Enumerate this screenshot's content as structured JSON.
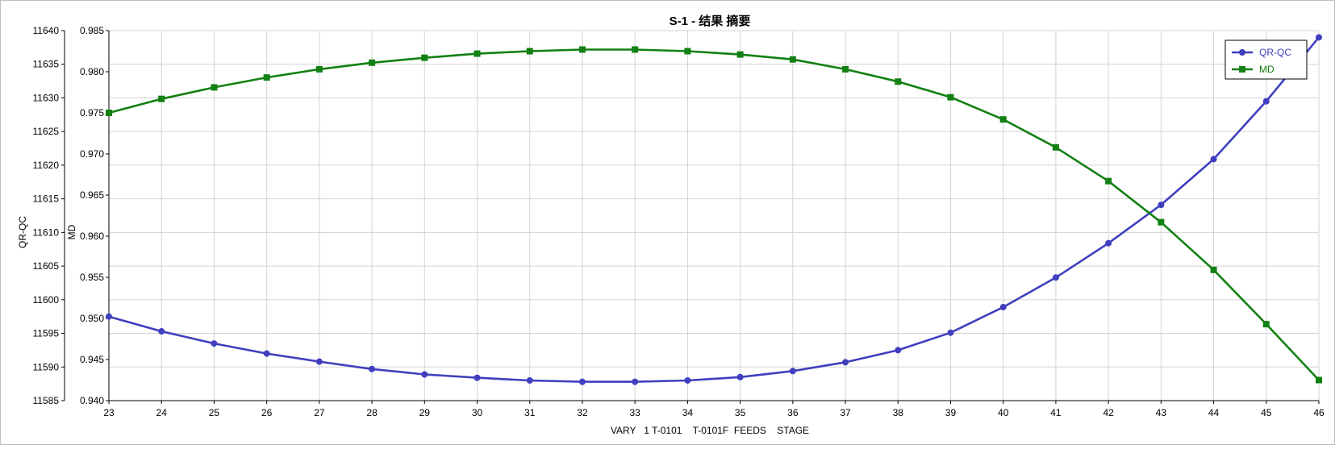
{
  "chart_data": {
    "type": "line",
    "title": "S-1 - 结果 摘要",
    "xlabel": "VARY   1 T-0101    T-0101F  FEEDS    STAGE",
    "ylabel_left": "QR-QC",
    "ylabel_right": "MD",
    "x": [
      23,
      24,
      25,
      26,
      27,
      28,
      29,
      30,
      31,
      32,
      33,
      34,
      35,
      36,
      37,
      38,
      39,
      40,
      41,
      42,
      43,
      44,
      45,
      46
    ],
    "xlim": [
      23,
      46
    ],
    "y_left_lim": [
      11585,
      11640
    ],
    "y_left_ticks": [
      "11585",
      "11590",
      "11595",
      "11600",
      "11605",
      "11610",
      "11615",
      "11620",
      "11625",
      "11630",
      "11635",
      "11640"
    ],
    "y_right_lim": [
      0.94,
      0.985
    ],
    "y_right_ticks": [
      "0.940",
      "0.945",
      "0.950",
      "0.955",
      "0.960",
      "0.965",
      "0.970",
      "0.975",
      "0.980",
      "0.985"
    ],
    "grid": true,
    "legend_position": "top-right",
    "series": [
      {
        "name": "QR-QC",
        "axis": "left",
        "color": "#3f3fbf",
        "marker": "circle",
        "values": [
          11597.5,
          11595.3,
          11593.5,
          11592.0,
          11590.8,
          11589.7,
          11588.9,
          11588.4,
          11588.0,
          11587.8,
          11587.8,
          11588.0,
          11588.5,
          11589.4,
          11590.7,
          11592.5,
          11595.1,
          11598.9,
          11603.3,
          11608.4,
          11614.1,
          11620.9,
          11629.5,
          11639.0
        ]
      },
      {
        "name": "MD",
        "axis": "right",
        "color": "#128012",
        "marker": "square",
        "values": [
          0.975,
          0.9767,
          0.9781,
          0.9793,
          0.9803,
          0.9811,
          0.9817,
          0.9822,
          0.9825,
          0.9827,
          0.9827,
          0.9825,
          0.9821,
          0.9815,
          0.9803,
          0.9788,
          0.9769,
          0.9742,
          0.9708,
          0.9667,
          0.9617,
          0.9559,
          0.9493,
          0.9425
        ]
      }
    ]
  }
}
